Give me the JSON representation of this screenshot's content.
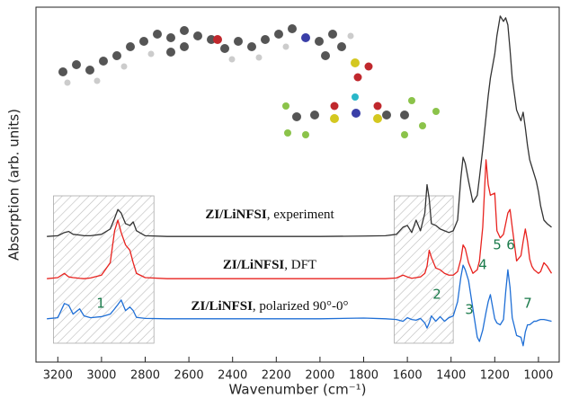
{
  "chart_data": {
    "type": "line",
    "ylabel": "Absorption (arb. units)",
    "xlabel": "Wavenumber (cm⁻¹)",
    "xlim": [
      3300,
      905
    ],
    "xticks": [
      3200,
      3000,
      2800,
      2600,
      2400,
      2200,
      2000,
      1800,
      1600,
      1400,
      1200,
      1000
    ],
    "ylim": [
      0,
      100
    ],
    "x": [
      3250,
      3200,
      3170,
      3150,
      3130,
      3100,
      3080,
      3050,
      3000,
      2960,
      2940,
      2925,
      2910,
      2890,
      2870,
      2855,
      2840,
      2800,
      2700,
      2500,
      2200,
      2000,
      1800,
      1700,
      1650,
      1620,
      1600,
      1580,
      1560,
      1540,
      1520,
      1510,
      1500,
      1490,
      1470,
      1450,
      1430,
      1410,
      1390,
      1370,
      1355,
      1345,
      1335,
      1320,
      1300,
      1280,
      1270,
      1255,
      1240,
      1230,
      1220,
      1200,
      1190,
      1175,
      1160,
      1150,
      1140,
      1130,
      1120,
      1100,
      1080,
      1070,
      1060,
      1050,
      1040,
      1030,
      1020,
      1010,
      1000,
      990,
      975,
      960,
      940
    ],
    "series": [
      {
        "name": "ZI/LiNFSI, experiment",
        "color": "#333333",
        "values": [
          35.4,
          35.6,
          36.5,
          36.8,
          36,
          35.8,
          35.6,
          35.6,
          36,
          37.5,
          40.5,
          43,
          42,
          39,
          38.5,
          39.5,
          37,
          35.6,
          35.4,
          35.4,
          35.4,
          35.4,
          35.5,
          35.6,
          36,
          38,
          38.5,
          36.5,
          40,
          37,
          42,
          50,
          46,
          39,
          38.5,
          37.5,
          37,
          36.5,
          37,
          40,
          52,
          57.7,
          56,
          51,
          45,
          47,
          52,
          60,
          69,
          75,
          80,
          86.8,
          92,
          97.5,
          96,
          97,
          95,
          88,
          80,
          71,
          68,
          70.4,
          66,
          61,
          57,
          55,
          53,
          51,
          48,
          44,
          40,
          39,
          38
        ]
      },
      {
        "name": "ZI/LiNFSI, DFT",
        "color": "#e8231f",
        "values": [
          23.5,
          23.8,
          25,
          24,
          23.8,
          23.6,
          23.5,
          23.7,
          24.5,
          28,
          37,
          40,
          36.5,
          33,
          31.5,
          28,
          25,
          23.8,
          23.5,
          23.5,
          23.5,
          23.5,
          23.5,
          23.5,
          23.7,
          24.5,
          24,
          23.6,
          23.8,
          24,
          25,
          27,
          31.5,
          29.5,
          26.5,
          26,
          25,
          24.5,
          24.5,
          25.5,
          29,
          33,
          32,
          28,
          25,
          26,
          28.5,
          38,
          57,
          50,
          47,
          47.6,
          37,
          35,
          36,
          39,
          42,
          43,
          38,
          28.5,
          30,
          34,
          37.5,
          34,
          29,
          27,
          26,
          25.5,
          25,
          25.5,
          28,
          27,
          25
        ]
      },
      {
        "name": "ZI/LiNFSI, polarized 90°-0°",
        "color": "#1f6fd6",
        "values": [
          12.2,
          12.5,
          16.5,
          16,
          13.5,
          15,
          13,
          12.5,
          12.8,
          13.5,
          15,
          16.2,
          17.5,
          14.5,
          15.5,
          14.5,
          12.6,
          12.3,
          12.2,
          12.2,
          12.2,
          12.2,
          12.4,
          12.2,
          12,
          11.5,
          12.5,
          12,
          11.8,
          12.3,
          11,
          9.6,
          11,
          13,
          11.5,
          12.8,
          11.5,
          12.5,
          13,
          17,
          24,
          27.3,
          26,
          23,
          15,
          7,
          5.8,
          9,
          14,
          17,
          19,
          12.2,
          11,
          10.5,
          12,
          19.7,
          26,
          21,
          12.5,
          7.5,
          7,
          4.6,
          8.5,
          10.5,
          10.5,
          11,
          11.5,
          11.5,
          11.8,
          12,
          12,
          11.8,
          11.5
        ]
      }
    ],
    "shaded_regions": [
      [
        3220,
        2760
      ],
      [
        1660,
        1390
      ]
    ],
    "annotations": [
      "1",
      "2",
      "3",
      "4",
      "5",
      "6",
      "7"
    ]
  }
}
